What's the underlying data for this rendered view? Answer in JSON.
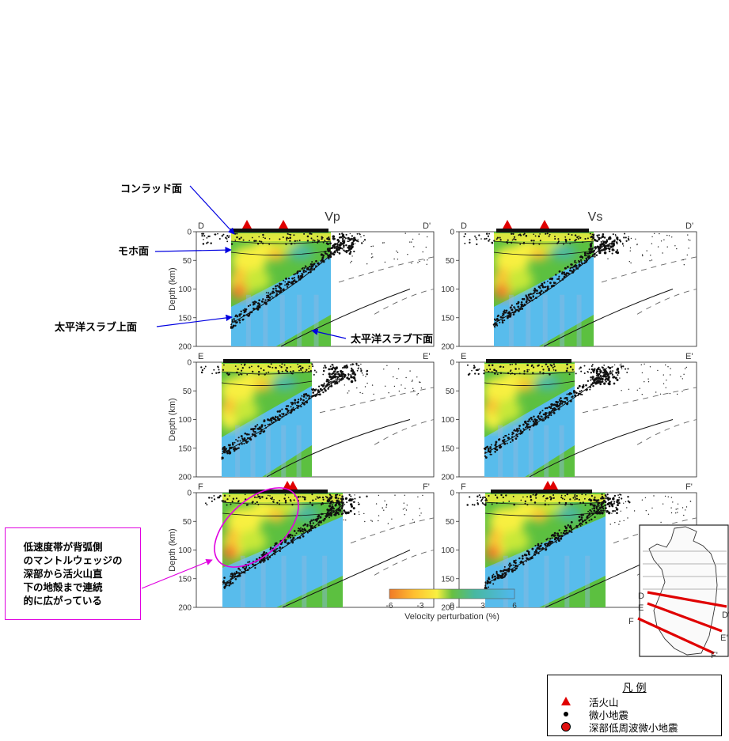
{
  "annotations": {
    "conrad": "コンラッド面",
    "moho": "モホ面",
    "slab_top": "太平洋スラブ上面",
    "slab_bottom": "太平洋スラブ下面",
    "note": "低速度帯が背弧側\nのマントルウェッジの\n深部から活火山直\n下の地殻まで連続\n的に広がっている"
  },
  "panels": {
    "columns": [
      "Vp",
      "Vs"
    ],
    "rows": [
      {
        "left": "D",
        "right": "D'"
      },
      {
        "left": "E",
        "right": "E'"
      },
      {
        "left": "F",
        "right": "F'"
      }
    ],
    "depth_label": "Depth (km)",
    "depth_ticks": [
      "0",
      "50",
      "100",
      "150",
      "200"
    ]
  },
  "colorbar": {
    "ticks": [
      "-6",
      "-3",
      "0",
      "3",
      "6"
    ],
    "label": "Velocity perturbation (%)",
    "colors": [
      "#f07a28",
      "#ffc030",
      "#f8f040",
      "#c8e838",
      "#68c040",
      "#48b8a0",
      "#50b8f0"
    ]
  },
  "map": {
    "labels": {
      "d": "D",
      "e": "E",
      "f": "F",
      "d2": "D'",
      "e2": "E'",
      "f2": "F'"
    },
    "line_color": "#e00000"
  },
  "legend": {
    "title": "凡 例",
    "items": [
      {
        "symbol": "red-triangle",
        "label": "活火山"
      },
      {
        "symbol": "black-dot",
        "label": "微小地震"
      },
      {
        "symbol": "red-circle",
        "label": "深部低周波微小地震"
      }
    ]
  },
  "colors": {
    "arrow_blue": "#0000e0",
    "annotation_magenta": "#e000e0",
    "volcano_red": "#e00000",
    "slab_blue": "#58bcec",
    "mantle_green": "#5cc040"
  }
}
